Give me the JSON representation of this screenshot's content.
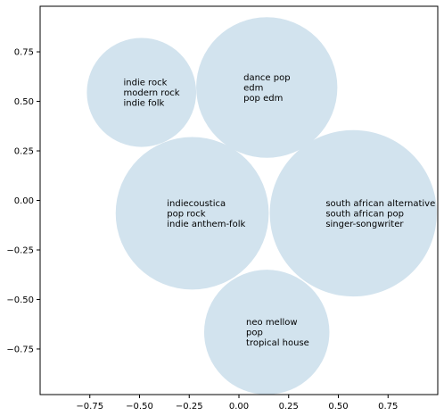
{
  "chart_data": {
    "type": "bubble",
    "title": "",
    "xlabel": "",
    "ylabel": "",
    "xlim": [
      -1.0,
      1.0
    ],
    "ylim": [
      -0.98,
      0.98
    ],
    "grid": false,
    "bubble_color": "#d2e3ee",
    "xticks": [
      -0.75,
      -0.5,
      -0.25,
      0.0,
      0.25,
      0.5,
      0.75
    ],
    "xtick_labels": [
      "−0.75",
      "−0.50",
      "−0.25",
      "0.00",
      "0.25",
      "0.50",
      "0.75"
    ],
    "yticks": [
      0.75,
      0.5,
      0.25,
      0.0,
      -0.25,
      -0.5,
      -0.75
    ],
    "ytick_labels": [
      "0.75",
      "0.50",
      "0.25",
      "0.00",
      "−0.25",
      "−0.50",
      "−0.75"
    ],
    "bubbles": [
      {
        "x": -0.49,
        "y": 0.545,
        "r": 0.275,
        "labels": [
          "indie rock",
          "modern rock",
          "indie folk"
        ]
      },
      {
        "x": 0.14,
        "y": 0.57,
        "r": 0.355,
        "labels": [
          "dance pop",
          "edm",
          "pop edm"
        ]
      },
      {
        "x": -0.235,
        "y": -0.065,
        "r": 0.385,
        "labels": [
          "indiecoustica",
          "pop rock",
          "indie anthem-folk"
        ]
      },
      {
        "x": 0.575,
        "y": -0.065,
        "r": 0.42,
        "labels": [
          "south african alternative",
          "south african pop",
          "singer-songwriter"
        ]
      },
      {
        "x": 0.14,
        "y": -0.665,
        "r": 0.315,
        "labels": [
          "neo mellow",
          "pop",
          "tropical house"
        ]
      }
    ]
  }
}
